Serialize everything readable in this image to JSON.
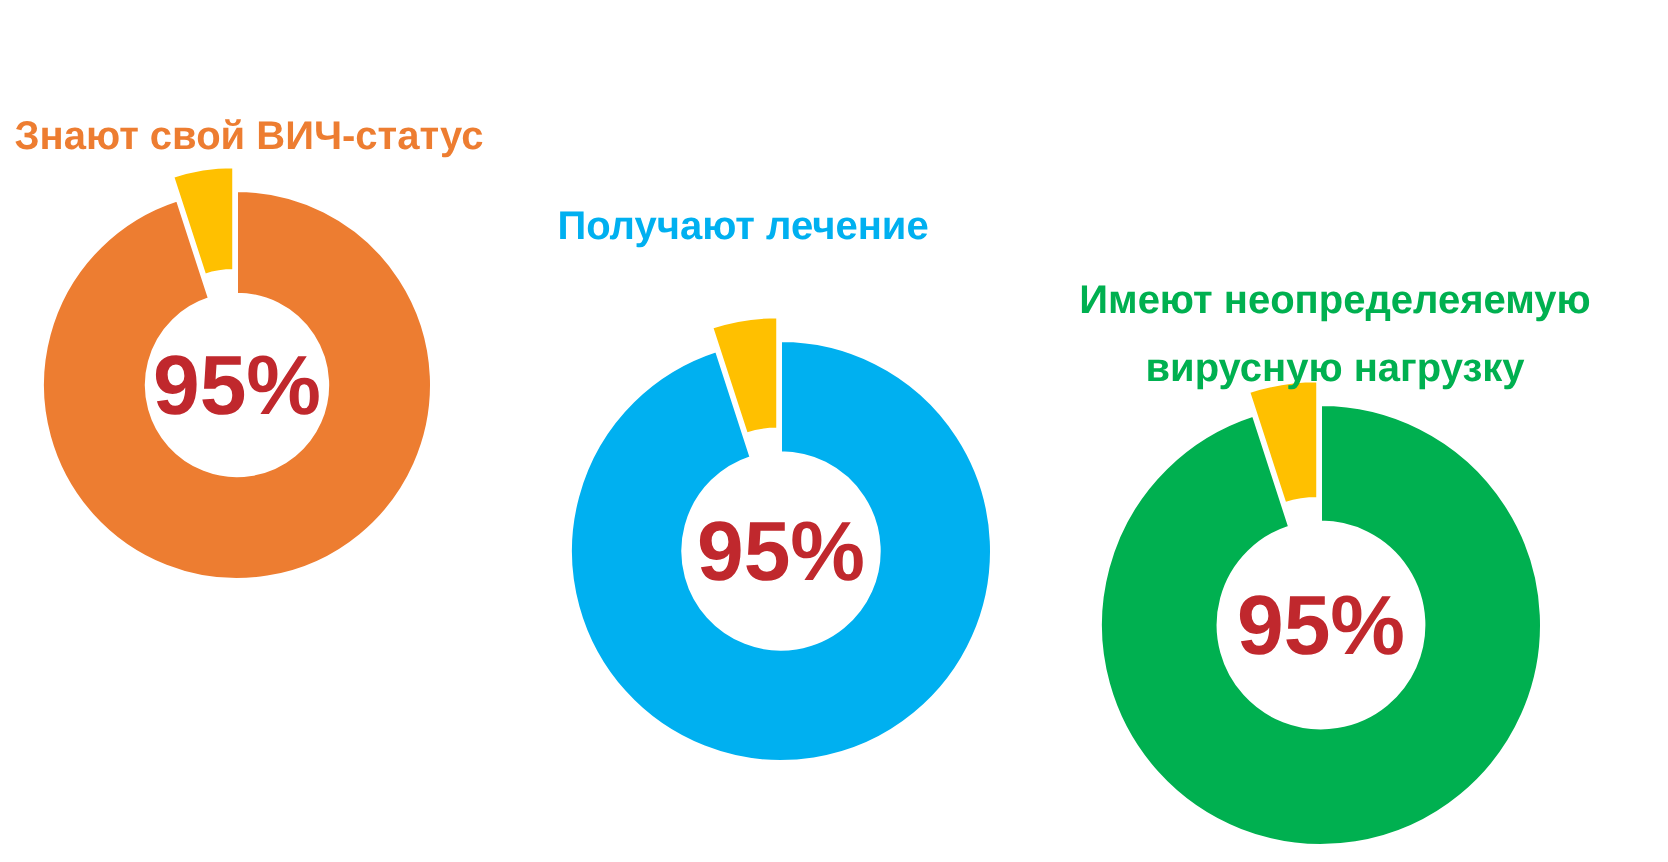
{
  "chart_data": [
    {
      "type": "donut",
      "title": "Знают свой ВИЧ-статус",
      "categories": [
        null,
        null
      ],
      "values": [
        95,
        5
      ],
      "colors": [
        "#ed7d31",
        "#ffc000"
      ],
      "value_labels": [
        "95%",
        null
      ]
    },
    {
      "type": "donut",
      "title": "Получают лечение",
      "categories": [
        null,
        null
      ],
      "values": [
        95,
        5
      ],
      "colors": [
        "#00b0f0",
        "#ffc000"
      ],
      "value_labels": [
        "95%",
        null
      ]
    },
    {
      "type": "donut",
      "title": "Имеют неопределеяемую вирусную нагрузку",
      "categories": [
        null,
        null
      ],
      "values": [
        95,
        5
      ],
      "colors": [
        "#00b050",
        "#ffc000"
      ],
      "value_labels": [
        "95%",
        null
      ]
    }
  ]
}
